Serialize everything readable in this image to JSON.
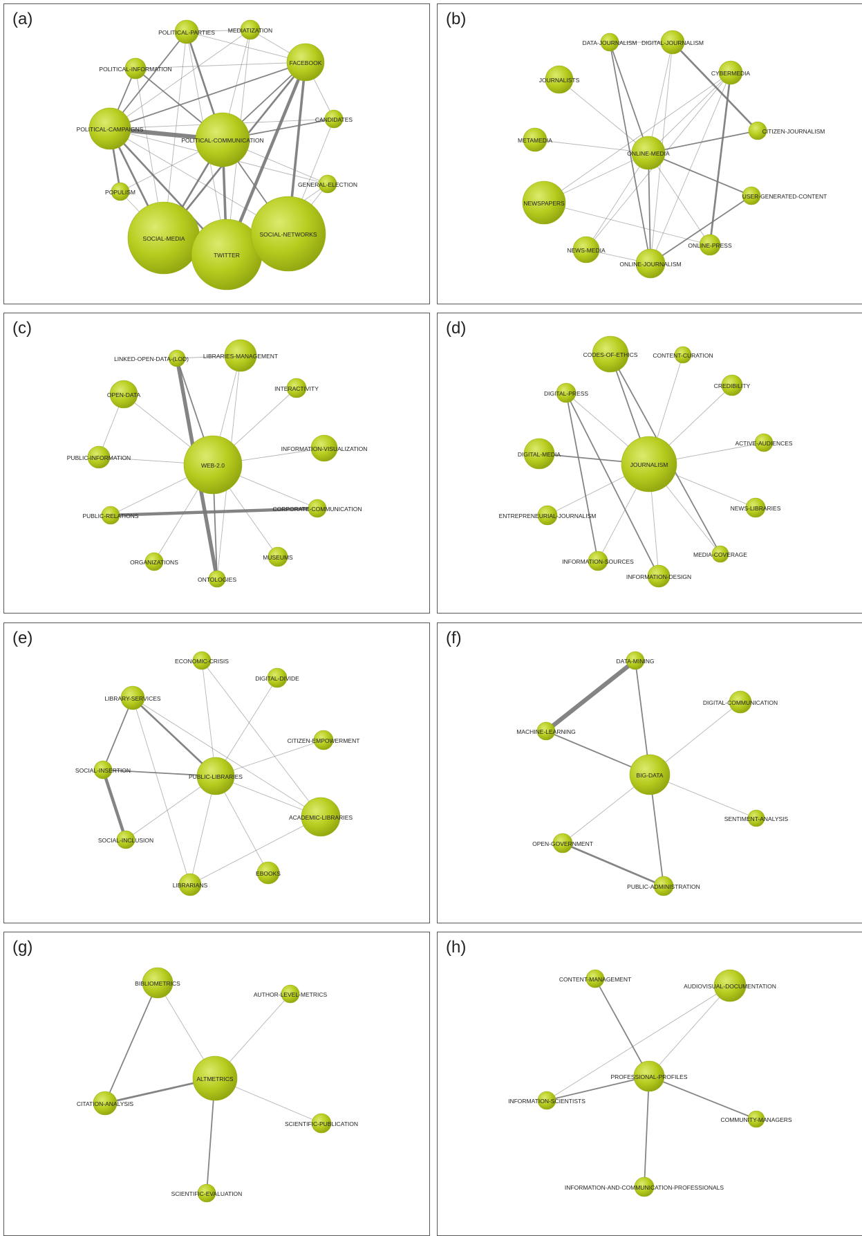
{
  "colors": {
    "node_fill": "#b7cc1e",
    "node_highlight": "#dcea6e",
    "node_shade": "#8fa310",
    "edge": "#777777",
    "border": "#555555"
  },
  "panels": [
    {
      "label": "(a)",
      "nodes": [
        {
          "id": "POLITICAL-PARTIES",
          "r": 17
        },
        {
          "id": "MEDIATIZATION",
          "r": 14
        },
        {
          "id": "POLITICAL-INFORMATION",
          "r": 15
        },
        {
          "id": "FACEBOOK",
          "r": 27
        },
        {
          "id": "POLITICAL-CAMPAIGNS",
          "r": 30
        },
        {
          "id": "POLITICAL-COMMUNICATION",
          "r": 39
        },
        {
          "id": "CANDIDATES",
          "r": 13
        },
        {
          "id": "POPULISM",
          "r": 13
        },
        {
          "id": "GENERAL-ELECTION",
          "r": 13
        },
        {
          "id": "SOCIAL-MEDIA",
          "r": 52
        },
        {
          "id": "TWITTER",
          "r": 51
        },
        {
          "id": "SOCIAL-NETWORKS",
          "r": 54
        }
      ],
      "edges": [
        [
          "POLITICAL-CAMPAIGNS",
          "POLITICAL-COMMUNICATION",
          7
        ],
        [
          "FACEBOOK",
          "TWITTER",
          5
        ],
        [
          "FACEBOOK",
          "SOCIAL-NETWORKS",
          4
        ],
        [
          "FACEBOOK",
          "SOCIAL-MEDIA",
          3
        ],
        [
          "POLITICAL-COMMUNICATION",
          "TWITTER",
          4
        ],
        [
          "POLITICAL-CAMPAIGNS",
          "SOCIAL-MEDIA",
          3
        ],
        [
          "POLITICAL-CAMPAIGNS",
          "TWITTER",
          3
        ],
        [
          "POLITICAL-PARTIES",
          "POLITICAL-COMMUNICATION",
          3
        ],
        [
          "POLITICAL-CAMPAIGNS",
          "POPULISM",
          3
        ],
        [
          "POLITICAL-COMMUNICATION",
          "SOCIAL-MEDIA",
          3
        ],
        [
          "POLITICAL-COMMUNICATION",
          "SOCIAL-NETWORKS",
          2
        ],
        [
          "POLITICAL-CAMPAIGNS",
          "FACEBOOK",
          2
        ],
        [
          "POLITICAL-CAMPAIGNS",
          "POLITICAL-PARTIES",
          2
        ],
        [
          "POLITICAL-CAMPAIGNS",
          "POLITICAL-INFORMATION",
          2
        ],
        [
          "POLITICAL-INFORMATION",
          "POLITICAL-COMMUNICATION",
          2
        ],
        [
          "POLITICAL-INFORMATION",
          "FACEBOOK",
          1
        ],
        [
          "POLITICAL-PARTIES",
          "MEDIATIZATION",
          1
        ],
        [
          "MEDIATIZATION",
          "POLITICAL-COMMUNICATION",
          1
        ],
        [
          "MEDIATIZATION",
          "TWITTER",
          1
        ],
        [
          "MEDIATIZATION",
          "FACEBOOK",
          1
        ],
        [
          "POLITICAL-PARTIES",
          "FACEBOOK",
          1
        ],
        [
          "FACEBOOK",
          "POLITICAL-COMMUNICATION",
          2
        ],
        [
          "FACEBOOK",
          "CANDIDATES",
          1
        ],
        [
          "CANDIDATES",
          "POLITICAL-COMMUNICATION",
          2
        ],
        [
          "CANDIDATES",
          "SOCIAL-NETWORKS",
          1
        ],
        [
          "POLITICAL-COMMUNICATION",
          "GENERAL-ELECTION",
          1
        ],
        [
          "GENERAL-ELECTION",
          "SOCIAL-NETWORKS",
          1
        ],
        [
          "GENERAL-ELECTION",
          "TWITTER",
          1
        ],
        [
          "POPULISM",
          "SOCIAL-MEDIA",
          1
        ],
        [
          "POPULISM",
          "POLITICAL-COMMUNICATION",
          1
        ],
        [
          "POLITICAL-CAMPAIGNS",
          "CANDIDATES",
          1
        ],
        [
          "POLITICAL-CAMPAIGNS",
          "SOCIAL-NETWORKS",
          1
        ],
        [
          "POLITICAL-CAMPAIGNS",
          "GENERAL-ELECTION",
          1
        ],
        [
          "POLITICAL-INFORMATION",
          "SOCIAL-MEDIA",
          1
        ],
        [
          "POLITICAL-PARTIES",
          "TWITTER",
          1
        ],
        [
          "POLITICAL-PARTIES",
          "SOCIAL-MEDIA",
          1
        ],
        [
          "SOCIAL-MEDIA",
          "SOCIAL-NETWORKS",
          1
        ],
        [
          "MEDIATIZATION",
          "POLITICAL-CAMPAIGNS",
          1
        ]
      ]
    },
    {
      "label": "(b)",
      "nodes": [
        {
          "id": "DATA-JOURNALISM",
          "r": 13
        },
        {
          "id": "DIGITAL-JOURNALISM",
          "r": 17
        },
        {
          "id": "JOURNALISTS",
          "r": 20
        },
        {
          "id": "CYBERMEDIA",
          "r": 17
        },
        {
          "id": "METAMEDIA",
          "r": 17
        },
        {
          "id": "CITIZEN-JOURNALISM",
          "r": 13
        },
        {
          "id": "ONLINE-MEDIA",
          "r": 24
        },
        {
          "id": "NEWSPAPERS",
          "r": 31
        },
        {
          "id": "USER-GENERATED-CONTENT",
          "r": 13
        },
        {
          "id": "NEWS-MEDIA",
          "r": 19
        },
        {
          "id": "ONLINE-PRESS",
          "r": 15
        },
        {
          "id": "ONLINE-JOURNALISM",
          "r": 21
        }
      ],
      "edges": [
        [
          "DIGITAL-JOURNALISM",
          "CITIZEN-JOURNALISM",
          3
        ],
        [
          "CYBERMEDIA",
          "ONLINE-PRESS",
          3
        ],
        [
          "DATA-JOURNALISM",
          "ONLINE-MEDIA",
          2
        ],
        [
          "DATA-JOURNALISM",
          "ONLINE-JOURNALISM",
          2
        ],
        [
          "ONLINE-MEDIA",
          "ONLINE-JOURNALISM",
          2
        ],
        [
          "ONLINE-MEDIA",
          "CITIZEN-JOURNALISM",
          2
        ],
        [
          "ONLINE-MEDIA",
          "USER-GENERATED-CONTENT",
          2
        ],
        [
          "NEWSPAPERS",
          "ONLINE-MEDIA",
          1
        ],
        [
          "NEWS-MEDIA",
          "ONLINE-MEDIA",
          1
        ],
        [
          "CYBERMEDIA",
          "ONLINE-MEDIA",
          1
        ],
        [
          "DIGITAL-JOURNALISM",
          "ONLINE-MEDIA",
          1
        ],
        [
          "JOURNALISTS",
          "ONLINE-MEDIA",
          1
        ],
        [
          "METAMEDIA",
          "ONLINE-MEDIA",
          1
        ],
        [
          "ONLINE-MEDIA",
          "ONLINE-PRESS",
          1
        ],
        [
          "ONLINE-JOURNALISM",
          "USER-GENERATED-CONTENT",
          2
        ],
        [
          "NEWSPAPERS",
          "ONLINE-PRESS",
          1
        ],
        [
          "NEWSPAPERS",
          "CYBERMEDIA",
          1
        ],
        [
          "DATA-JOURNALISM",
          "DIGITAL-JOURNALISM",
          1
        ],
        [
          "CYBERMEDIA",
          "ONLINE-JOURNALISM",
          1
        ],
        [
          "DIGITAL-JOURNALISM",
          "ONLINE-JOURNALISM",
          1
        ],
        [
          "NEWS-MEDIA",
          "ONLINE-JOURNALISM",
          1
        ],
        [
          "NEWS-MEDIA",
          "CYBERMEDIA",
          1
        ]
      ]
    },
    {
      "label": "(c)",
      "nodes": [
        {
          "id": "LINKED-OPEN-DATA-(LOD)",
          "r": 12
        },
        {
          "id": "LIBRARIES-MANAGEMENT",
          "r": 23
        },
        {
          "id": "OPEN-DATA",
          "r": 20
        },
        {
          "id": "INTERACTIVITY",
          "r": 14
        },
        {
          "id": "INFORMATION-VISUALIZATION",
          "r": 19
        },
        {
          "id": "PUBLIC-INFORMATION",
          "r": 16
        },
        {
          "id": "WEB-2.0",
          "r": 42
        },
        {
          "id": "PUBLIC-RELATIONS",
          "r": 13
        },
        {
          "id": "CORPORATE-COMMUNICATION",
          "r": 13
        },
        {
          "id": "ORGANIZATIONS",
          "r": 13
        },
        {
          "id": "MUSEUMS",
          "r": 14
        },
        {
          "id": "ONTOLOGIES",
          "r": 12
        }
      ],
      "edges": [
        [
          "LINKED-OPEN-DATA-(LOD)",
          "ONTOLOGIES",
          6
        ],
        [
          "PUBLIC-RELATIONS",
          "CORPORATE-COMMUNICATION",
          5
        ],
        [
          "LINKED-OPEN-DATA-(LOD)",
          "WEB-2.0",
          2
        ],
        [
          "LIBRARIES-MANAGEMENT",
          "WEB-2.0",
          1
        ],
        [
          "OPEN-DATA",
          "WEB-2.0",
          1
        ],
        [
          "OPEN-DATA",
          "PUBLIC-INFORMATION",
          1
        ],
        [
          "INTERACTIVITY",
          "WEB-2.0",
          1
        ],
        [
          "INFORMATION-VISUALIZATION",
          "WEB-2.0",
          1
        ],
        [
          "PUBLIC-INFORMATION",
          "WEB-2.0",
          1
        ],
        [
          "PUBLIC-RELATIONS",
          "WEB-2.0",
          1
        ],
        [
          "CORPORATE-COMMUNICATION",
          "WEB-2.0",
          1
        ],
        [
          "ORGANIZATIONS",
          "WEB-2.0",
          1
        ],
        [
          "MUSEUMS",
          "WEB-2.0",
          1
        ],
        [
          "ONTOLOGIES",
          "WEB-2.0",
          2
        ],
        [
          "LIBRARIES-MANAGEMENT",
          "ONTOLOGIES",
          1
        ],
        [
          "LINKED-OPEN-DATA-(LOD)",
          "LIBRARIES-MANAGEMENT",
          1
        ]
      ]
    },
    {
      "label": "(d)",
      "nodes": [
        {
          "id": "CODES-OF-ETHICS",
          "r": 26
        },
        {
          "id": "CONTENT-CURATION",
          "r": 12
        },
        {
          "id": "CREDIBILITY",
          "r": 15
        },
        {
          "id": "DIGITAL-PRESS",
          "r": 14
        },
        {
          "id": "ACTIVE-AUDIENCES",
          "r": 13
        },
        {
          "id": "DIGITAL-MEDIA",
          "r": 22
        },
        {
          "id": "JOURNALISM",
          "r": 40
        },
        {
          "id": "ENTREPRENEURIAL-JOURNALISM",
          "r": 14
        },
        {
          "id": "NEWS-LIBRARIES",
          "r": 14
        },
        {
          "id": "MEDIA-COVERAGE",
          "r": 12
        },
        {
          "id": "INFORMATION-SOURCES",
          "r": 14
        },
        {
          "id": "INFORMATION-DESIGN",
          "r": 16
        }
      ],
      "edges": [
        [
          "DIGITAL-PRESS",
          "INFORMATION-SOURCES",
          2
        ],
        [
          "DIGITAL-PRESS",
          "INFORMATION-DESIGN",
          2
        ],
        [
          "DIGITAL-MEDIA",
          "JOURNALISM",
          2
        ],
        [
          "CODES-OF-ETHICS",
          "JOURNALISM",
          2
        ],
        [
          "CODES-OF-ETHICS",
          "MEDIA-COVERAGE",
          2
        ],
        [
          "JOURNALISM",
          "NEWS-LIBRARIES",
          1
        ],
        [
          "JOURNALISM",
          "MEDIA-COVERAGE",
          1
        ],
        [
          "JOURNALISM",
          "CONTENT-CURATION",
          1
        ],
        [
          "JOURNALISM",
          "CREDIBILITY",
          1
        ],
        [
          "JOURNALISM",
          "ACTIVE-AUDIENCES",
          1
        ],
        [
          "JOURNALISM",
          "DIGITAL-PRESS",
          1
        ],
        [
          "JOURNALISM",
          "ENTREPRENEURIAL-JOURNALISM",
          1
        ],
        [
          "JOURNALISM",
          "INFORMATION-SOURCES",
          1
        ],
        [
          "JOURNALISM",
          "INFORMATION-DESIGN",
          1
        ]
      ]
    },
    {
      "label": "(e)",
      "nodes": [
        {
          "id": "ECONOMIC-CRISIS",
          "r": 13
        },
        {
          "id": "DIGITAL-DIVIDE",
          "r": 14
        },
        {
          "id": "LIBRARY-SERVICES",
          "r": 17
        },
        {
          "id": "CITIZEN-EMPOWERMENT",
          "r": 14
        },
        {
          "id": "SOCIAL-INSERTION",
          "r": 13
        },
        {
          "id": "PUBLIC-LIBRARIES",
          "r": 27
        },
        {
          "id": "ACADEMIC-LIBRARIES",
          "r": 28
        },
        {
          "id": "SOCIAL-INCLUSION",
          "r": 13
        },
        {
          "id": "EBOOKS",
          "r": 16
        },
        {
          "id": "LIBRARIANS",
          "r": 16
        }
      ],
      "edges": [
        [
          "SOCIAL-INSERTION",
          "SOCIAL-INCLUSION",
          5
        ],
        [
          "LIBRARY-SERVICES",
          "PUBLIC-LIBRARIES",
          3
        ],
        [
          "LIBRARY-SERVICES",
          "SOCIAL-INSERTION",
          2
        ],
        [
          "SOCIAL-INSERTION",
          "PUBLIC-LIBRARIES",
          2
        ],
        [
          "SOCIAL-INCLUSION",
          "PUBLIC-LIBRARIES",
          1
        ],
        [
          "LIBRARY-SERVICES",
          "LIBRARIANS",
          1
        ],
        [
          "LIBRARY-SERVICES",
          "ACADEMIC-LIBRARIES",
          1
        ],
        [
          "ECONOMIC-CRISIS",
          "PUBLIC-LIBRARIES",
          1
        ],
        [
          "ECONOMIC-CRISIS",
          "ACADEMIC-LIBRARIES",
          1
        ],
        [
          "DIGITAL-DIVIDE",
          "PUBLIC-LIBRARIES",
          1
        ],
        [
          "CITIZEN-EMPOWERMENT",
          "PUBLIC-LIBRARIES",
          1
        ],
        [
          "PUBLIC-LIBRARIES",
          "ACADEMIC-LIBRARIES",
          1
        ],
        [
          "PUBLIC-LIBRARIES",
          "EBOOKS",
          1
        ],
        [
          "PUBLIC-LIBRARIES",
          "LIBRARIANS",
          1
        ],
        [
          "LIBRARIANS",
          "ACADEMIC-LIBRARIES",
          1
        ]
      ]
    },
    {
      "label": "(f)",
      "nodes": [
        {
          "id": "DATA-MINING",
          "r": 13
        },
        {
          "id": "DIGITAL-COMMUNICATION",
          "r": 16
        },
        {
          "id": "MACHINE-LEARNING",
          "r": 13
        },
        {
          "id": "BIG-DATA",
          "r": 29
        },
        {
          "id": "SENTIMENT-ANALYSIS",
          "r": 12
        },
        {
          "id": "OPEN-GOVERNMENT",
          "r": 14
        },
        {
          "id": "PUBLIC-ADMINISTRATION",
          "r": 14
        }
      ],
      "edges": [
        [
          "DATA-MINING",
          "MACHINE-LEARNING",
          7
        ],
        [
          "OPEN-GOVERNMENT",
          "PUBLIC-ADMINISTRATION",
          3
        ],
        [
          "MACHINE-LEARNING",
          "BIG-DATA",
          2
        ],
        [
          "DATA-MINING",
          "BIG-DATA",
          2
        ],
        [
          "BIG-DATA",
          "PUBLIC-ADMINISTRATION",
          2
        ],
        [
          "BIG-DATA",
          "OPEN-GOVERNMENT",
          1
        ],
        [
          "BIG-DATA",
          "DIGITAL-COMMUNICATION",
          1
        ],
        [
          "BIG-DATA",
          "SENTIMENT-ANALYSIS",
          1
        ]
      ]
    },
    {
      "label": "(g)",
      "nodes": [
        {
          "id": "BIBLIOMETRICS",
          "r": 22
        },
        {
          "id": "AUTHOR-LEVEL-METRICS",
          "r": 13
        },
        {
          "id": "ALTMETRICS",
          "r": 32
        },
        {
          "id": "CITATION-ANALYSIS",
          "r": 17
        },
        {
          "id": "SCIENTIFIC-PUBLICATION",
          "r": 14
        },
        {
          "id": "SCIENTIFIC-EVALUATION",
          "r": 13
        }
      ],
      "edges": [
        [
          "CITATION-ANALYSIS",
          "ALTMETRICS",
          3
        ],
        [
          "BIBLIOMETRICS",
          "CITATION-ANALYSIS",
          2
        ],
        [
          "BIBLIOMETRICS",
          "ALTMETRICS",
          1
        ],
        [
          "AUTHOR-LEVEL-METRICS",
          "ALTMETRICS",
          1
        ],
        [
          "ALTMETRICS",
          "SCIENTIFIC-PUBLICATION",
          1
        ],
        [
          "ALTMETRICS",
          "SCIENTIFIC-EVALUATION",
          2
        ]
      ]
    },
    {
      "label": "(h)",
      "nodes": [
        {
          "id": "CONTENT-MANAGEMENT",
          "r": 13
        },
        {
          "id": "AUDIOVISUAL-DOCUMENTATION",
          "r": 23
        },
        {
          "id": "PROFESSIONAL-PROFILES",
          "r": 22
        },
        {
          "id": "INFORMATION-SCIENTISTS",
          "r": 13
        },
        {
          "id": "COMMUNITY-MANAGERS",
          "r": 12
        },
        {
          "id": "INFORMATION-AND-COMMUNICATION-PROFESSIONALS",
          "r": 14
        }
      ],
      "edges": [
        [
          "CONTENT-MANAGEMENT",
          "PROFESSIONAL-PROFILES",
          2
        ],
        [
          "INFORMATION-SCIENTISTS",
          "AUDIOVISUAL-DOCUMENTATION",
          1
        ],
        [
          "INFORMATION-SCIENTISTS",
          "PROFESSIONAL-PROFILES",
          2
        ],
        [
          "PROFESSIONAL-PROFILES",
          "AUDIOVISUAL-DOCUMENTATION",
          1
        ],
        [
          "PROFESSIONAL-PROFILES",
          "COMMUNITY-MANAGERS",
          2
        ],
        [
          "PROFESSIONAL-PROFILES",
          "INFORMATION-AND-COMMUNICATION-PROFESSIONALS",
          2
        ]
      ]
    }
  ]
}
